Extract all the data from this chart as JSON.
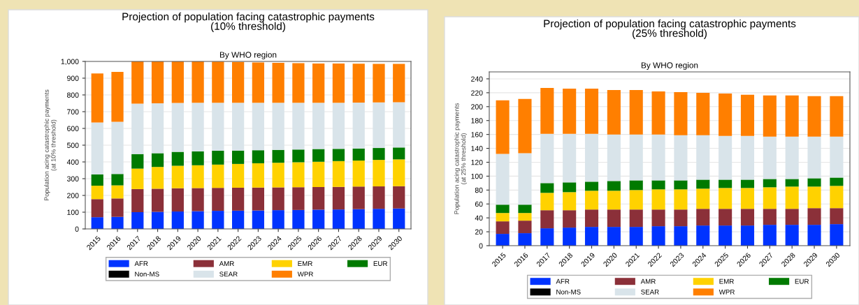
{
  "chart_data": [
    {
      "type": "bar",
      "stacked": true,
      "title": "Projection of population facing catastrophic payments\n(10% threshold)",
      "subtitle": "By WHO region",
      "ylabel": "Population acing catastrophic payments\n(at 10% threshold)",
      "categories": [
        "2015",
        "2016",
        "2017",
        "2018",
        "2019",
        "2020",
        "2021",
        "2022",
        "2023",
        "2024",
        "2025",
        "2026",
        "2027",
        "2028",
        "2029",
        "2030"
      ],
      "ylim": [
        0,
        1000
      ],
      "yticks": [
        0,
        100,
        200,
        300,
        400,
        500,
        600,
        700,
        800,
        900,
        {
          "value": 1000,
          "label": "1,000"
        }
      ],
      "grid": "y",
      "legend": "bottom",
      "series": [
        {
          "name": "AFR",
          "color": "#0033ff",
          "values": [
            70,
            72,
            100,
            102,
            104,
            106,
            108,
            109,
            110,
            112,
            113,
            115,
            116,
            118,
            120,
            122
          ]
        },
        {
          "name": "AMR",
          "color": "#8b3039",
          "values": [
            108,
            110,
            138,
            138,
            139,
            138,
            137,
            137,
            137,
            136,
            136,
            135,
            135,
            135,
            134,
            133
          ]
        },
        {
          "name": "EMR",
          "color": "#ffd200",
          "values": [
            80,
            78,
            122,
            130,
            134,
            136,
            139,
            142,
            145,
            147,
            149,
            151,
            154,
            155,
            158,
            160
          ]
        },
        {
          "name": "EUR",
          "color": "#007a00",
          "values": [
            67,
            68,
            87,
            82,
            83,
            83,
            83,
            80,
            78,
            77,
            76,
            76,
            73,
            72,
            71,
            71
          ]
        },
        {
          "name": "Non-MS",
          "color": "#000000",
          "values": [
            null,
            null,
            null,
            null,
            null,
            null,
            null,
            null,
            null,
            null,
            null,
            null,
            null,
            null,
            null,
            null
          ]
        },
        {
          "name": "SEAR",
          "color": "#d9e4ea",
          "values": [
            310,
            312,
            301,
            298,
            292,
            290,
            286,
            285,
            283,
            281,
            279,
            276,
            275,
            274,
            272,
            270
          ]
        },
        {
          "name": "WPR",
          "color": "#ff7f00",
          "values": [
            293,
            297,
            252,
            250,
            248,
            247,
            246,
            244,
            241,
            239,
            237,
            235,
            234,
            232,
            230,
            229
          ]
        }
      ]
    },
    {
      "type": "bar",
      "stacked": true,
      "title": "Projection of population facing catastrophic payments\n(25% threshold)",
      "subtitle": "By WHO region",
      "ylabel": "Population acing catastrophic payments\n(at 25% threshold)",
      "categories": [
        "2015",
        "2016",
        "2017",
        "2018",
        "2019",
        "2020",
        "2021",
        "2022",
        "2023",
        "2024",
        "2025",
        "2026",
        "2027",
        "2028",
        "2029",
        "2030"
      ],
      "ylim": [
        0,
        250
      ],
      "yticks": [
        0,
        20,
        40,
        60,
        80,
        100,
        120,
        140,
        160,
        180,
        200,
        220,
        240
      ],
      "grid": "y",
      "legend": "bottom",
      "series": [
        {
          "name": "AFR",
          "color": "#0033ff",
          "values": [
            17,
            18,
            25,
            26,
            27,
            27,
            27,
            28,
            28,
            29,
            29,
            29,
            30,
            30,
            30,
            31
          ]
        },
        {
          "name": "AMR",
          "color": "#8b3039",
          "values": [
            18,
            18,
            26,
            25,
            25,
            25,
            25,
            24,
            24,
            24,
            24,
            24,
            23,
            23,
            24,
            23
          ]
        },
        {
          "name": "EMR",
          "color": "#ffd200",
          "values": [
            12,
            11,
            25,
            26,
            27,
            27,
            28,
            29,
            29,
            29,
            30,
            30,
            31,
            32,
            31,
            32
          ]
        },
        {
          "name": "EUR",
          "color": "#007a00",
          "values": [
            12,
            12,
            14,
            14,
            13,
            14,
            14,
            13,
            13,
            13,
            12,
            12,
            12,
            11,
            12,
            12
          ]
        },
        {
          "name": "Non-MS",
          "color": "#000000",
          "values": [
            null,
            null,
            null,
            null,
            null,
            null,
            null,
            null,
            null,
            null,
            null,
            null,
            null,
            null,
            null,
            null
          ]
        },
        {
          "name": "SEAR",
          "color": "#d9e4ea",
          "values": [
            73,
            74,
            71,
            70,
            69,
            67,
            66,
            66,
            65,
            64,
            63,
            63,
            61,
            61,
            60,
            59
          ]
        },
        {
          "name": "WPR",
          "color": "#ff7f00",
          "values": [
            77,
            78,
            66,
            65,
            65,
            64,
            64,
            62,
            62,
            61,
            61,
            59,
            59,
            59,
            58,
            58
          ]
        }
      ]
    }
  ]
}
